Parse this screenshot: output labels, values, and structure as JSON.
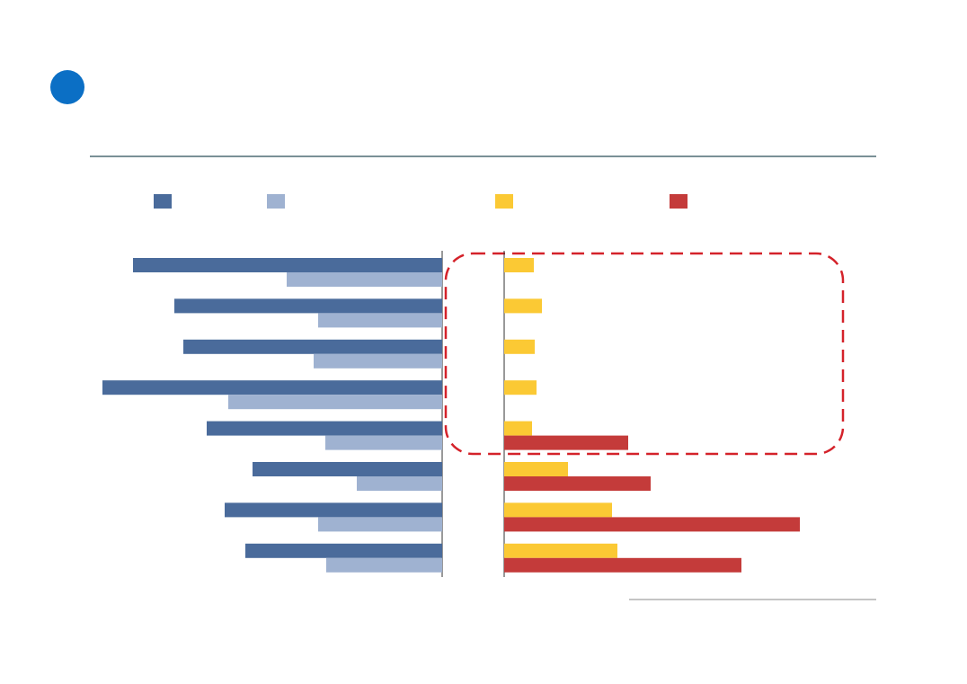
{
  "chart_data": [
    {
      "type": "bar",
      "orientation": "horizontal",
      "direction": "left",
      "categories": [
        null,
        null,
        null,
        null,
        null,
        null,
        null,
        null
      ],
      "series": [
        {
          "color": "#4a6b9b",
          "values": [
            344,
            298,
            288,
            378,
            262,
            211,
            242,
            219
          ]
        },
        {
          "color": "#9fb2d1",
          "values": [
            173,
            138,
            143,
            238,
            130,
            95,
            138,
            129
          ]
        }
      ],
      "xlim": [
        0,
        380
      ]
    },
    {
      "type": "bar",
      "orientation": "horizontal",
      "direction": "right",
      "categories": [
        null,
        null,
        null,
        null,
        null,
        null,
        null,
        null
      ],
      "series": [
        {
          "color": "#fbc934",
          "values": [
            33,
            42,
            34,
            36,
            31,
            71,
            120,
            126
          ]
        },
        {
          "color": "#c43b3a",
          "values": [
            null,
            null,
            null,
            null,
            138,
            163,
            329,
            264
          ]
        }
      ],
      "xlim": [
        0,
        380
      ]
    }
  ]
}
